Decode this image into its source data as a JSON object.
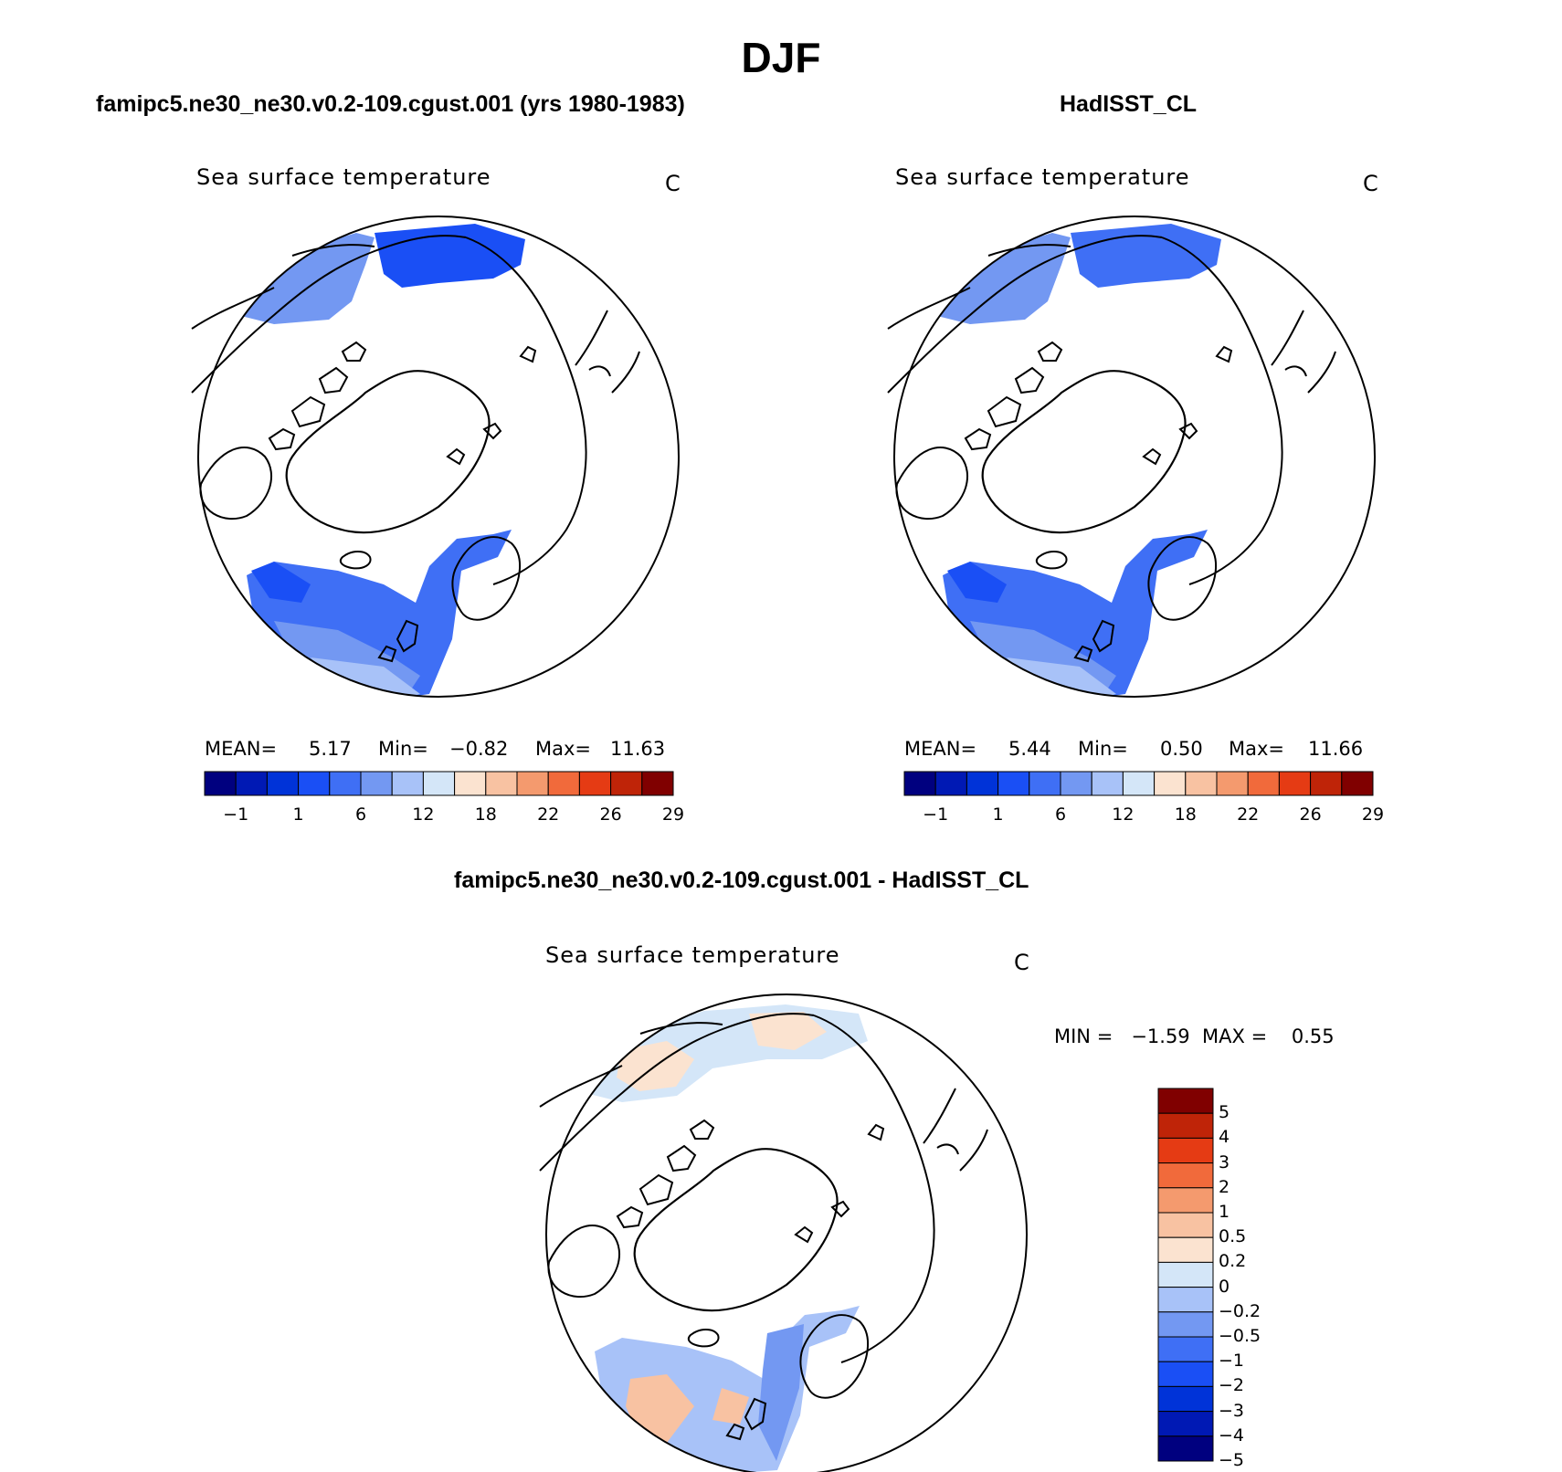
{
  "page": {
    "title": "DJF"
  },
  "panels": [
    {
      "title": "famipc5.ne30_ne30.v0.2-109.cgust.001 (yrs 1980-1983)",
      "variable": "Sea surface temperature",
      "units": "C",
      "mean_label": "MEAN=",
      "mean": "5.17",
      "min_label": "Min=",
      "min": "−0.82",
      "max_label": "Max=",
      "max": "11.63"
    },
    {
      "title": "HadISST_CL",
      "variable": "Sea surface temperature",
      "units": "C",
      "mean_label": "MEAN=",
      "mean": "5.44",
      "min_label": "Min=",
      "min": "0.50",
      "max_label": "Max=",
      "max": "11.66"
    },
    {
      "title": "famipc5.ne30_ne30.v0.2-109.cgust.001 - HadISST_CL",
      "variable": "Sea surface temperature",
      "units": "C",
      "stats": "MIN =   −1.59  MAX =    0.55"
    }
  ],
  "colors": {
    "sst_scale": [
      "#00007f",
      "#0019b4",
      "#0033d8",
      "#1a4ff5",
      "#3f6ff5",
      "#7398f2",
      "#a8c2f8",
      "#d4e6f8",
      "#fbe3d0",
      "#f8c2a2",
      "#f49a6e",
      "#f16a3b",
      "#e53b14",
      "#bf2408",
      "#800000"
    ],
    "diff_scale": [
      "#00007f",
      "#0019b4",
      "#0033d8",
      "#1a4ff5",
      "#3f6ff5",
      "#7398f2",
      "#a8c2f8",
      "#d4e6f8",
      "#fbe3d0",
      "#f8c2a2",
      "#f49a6e",
      "#f16a3b",
      "#e53b14",
      "#bf2408",
      "#800000"
    ]
  },
  "chart_data": [
    {
      "type": "heatmap",
      "projection": "north-polar-stereographic",
      "title": "famipc5.ne30_ne30.v0.2-109.cgust.001 (yrs 1980-1983)",
      "variable": "Sea surface temperature",
      "units": "C",
      "colorbar": {
        "orientation": "horizontal",
        "tick_labels": [
          "−1",
          "1",
          "6",
          "12",
          "18",
          "22",
          "26",
          "29"
        ],
        "levels": [
          -1,
          0,
          1,
          3,
          6,
          9,
          12,
          15,
          18,
          20,
          22,
          24,
          26,
          28,
          29
        ]
      },
      "stats": {
        "mean": 5.17,
        "min": -0.82,
        "max": 11.63
      }
    },
    {
      "type": "heatmap",
      "projection": "north-polar-stereographic",
      "title": "HadISST_CL",
      "variable": "Sea surface temperature",
      "units": "C",
      "colorbar": {
        "orientation": "horizontal",
        "tick_labels": [
          "−1",
          "1",
          "6",
          "12",
          "18",
          "22",
          "26",
          "29"
        ],
        "levels": [
          -1,
          0,
          1,
          3,
          6,
          9,
          12,
          15,
          18,
          20,
          22,
          24,
          26,
          28,
          29
        ]
      },
      "stats": {
        "mean": 5.44,
        "min": 0.5,
        "max": 11.66
      }
    },
    {
      "type": "heatmap",
      "projection": "north-polar-stereographic",
      "title": "famipc5.ne30_ne30.v0.2-109.cgust.001 - HadISST_CL",
      "variable": "Sea surface temperature",
      "units": "C",
      "colorbar": {
        "orientation": "vertical",
        "tick_labels": [
          "5",
          "4",
          "3",
          "2",
          "1",
          "0.5",
          "0.2",
          "0",
          "−0.2",
          "−0.5",
          "−1",
          "−2",
          "−3",
          "−4",
          "−5"
        ]
      },
      "stats": {
        "min": -1.59,
        "max": 0.55
      }
    }
  ]
}
